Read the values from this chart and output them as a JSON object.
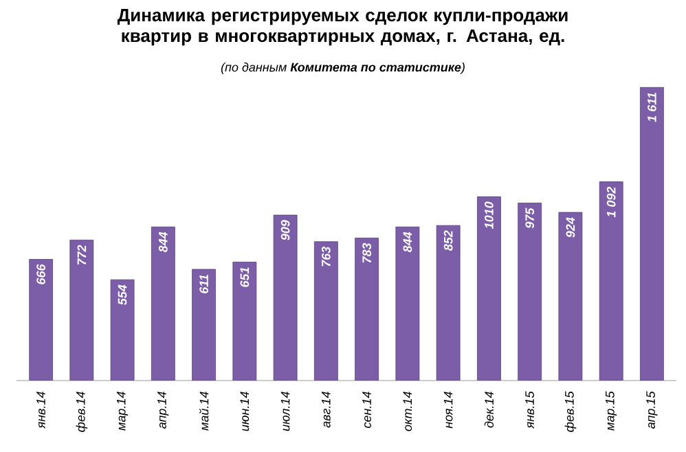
{
  "chart_data": {
    "type": "bar",
    "title": "Динамика регистрируемых сделок купли-продажи квартир в многоквартирных домах, г. Астана, ед.",
    "subtitle": "(по данным **Комитета по статистике**)",
    "categories": [
      "янв.14",
      "фев.14",
      "мар.14",
      "апр.14",
      "май.14",
      "июн.14",
      "июл.14",
      "авг.14",
      "сен.14",
      "окт.14",
      "ноя.14",
      "дек.14",
      "янв.15",
      "фев.15",
      "мар.15",
      "апр.15"
    ],
    "values": [
      666,
      772,
      554,
      844,
      611,
      651,
      909,
      763,
      783,
      844,
      852,
      1010,
      975,
      924,
      1092,
      1611
    ],
    "value_labels": [
      "666",
      "772",
      "554",
      "844",
      "611",
      "651",
      "909",
      "763",
      "783",
      "844",
      "852",
      "1010",
      "975",
      "924",
      "1 092",
      "1 611"
    ],
    "color": "#7b5ea7"
  }
}
